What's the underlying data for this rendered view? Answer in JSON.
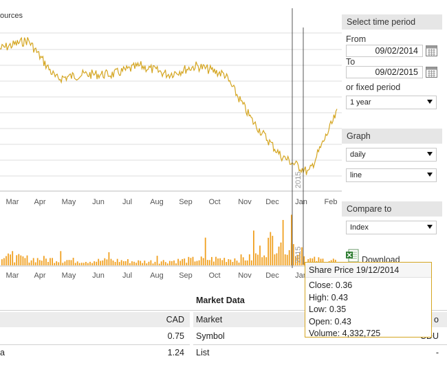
{
  "chart": {
    "source_fragment": "ources",
    "year_marker": "2015",
    "months": [
      "Mar",
      "Apr",
      "May",
      "Jun",
      "Jul",
      "Aug",
      "Sep",
      "Oct",
      "Nov",
      "Dec",
      "Jan",
      "Feb"
    ],
    "line_color": "#d4a520",
    "bar_color": "#f0a020"
  },
  "chart_data": {
    "type": "line",
    "x": [
      "Feb",
      "Mar",
      "Apr",
      "May",
      "Jun",
      "Jul",
      "Aug",
      "Sep",
      "Oct",
      "Nov",
      "Dec",
      "Jan",
      "Feb"
    ],
    "series": [
      {
        "values": [
          0.62,
          0.64,
          0.55,
          0.56,
          0.56,
          0.58,
          0.56,
          0.58,
          0.56,
          0.45,
          0.37,
          0.33,
          0.47
        ]
      }
    ],
    "volume_series": [
      {
        "values": [
          1.1,
          0.9,
          0.8,
          0.6,
          0.7,
          0.5,
          0.6,
          0.8,
          0.9,
          1.0,
          4.33,
          0.8,
          0.7
        ]
      }
    ],
    "grid": true,
    "crosshair_date": "19/12/2014"
  },
  "panel": {
    "time_period_title": "Select time period",
    "from_label": "From",
    "from_value": "09/02/2014",
    "to_label": "To",
    "to_value": "09/02/2015",
    "fixed_period_label": "or fixed period",
    "fixed_period_value": "1 year",
    "graph_title": "Graph",
    "graph_interval_value": "daily",
    "graph_type_value": "line",
    "compare_title": "Compare to",
    "compare_value": "Index",
    "download_label": "Download"
  },
  "tooltip": {
    "title": "Share Price 19/12/2014",
    "close": "Close: 0.36",
    "high": "High: 0.43",
    "low": "Low: 0.35",
    "open": "Open: 0.43",
    "volume": "Volume: 4,332,725"
  },
  "market_data": {
    "title": "Market Data",
    "left_header_value": "CAD",
    "left_row1_value": "0.75",
    "left_row2_label": "a",
    "left_row2_value": "1.24",
    "market_label": "Market",
    "market_value_fragment": "o",
    "symbol_label": "Symbol",
    "symbol_value_fragment": "CDU",
    "list_label": "List",
    "list_value": "-"
  },
  "colors": {
    "accent": "#d4a520",
    "panel_header_bg": "#e6e6e6",
    "row_bg": "#ececec"
  }
}
